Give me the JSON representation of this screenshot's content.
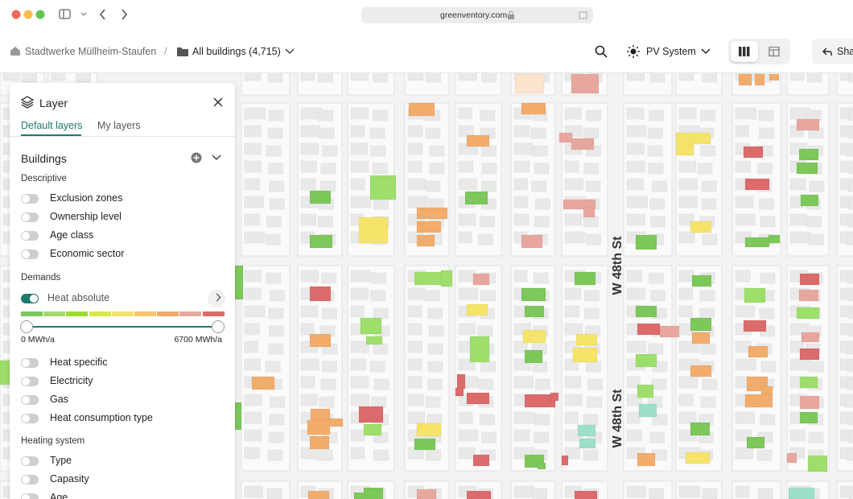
{
  "browser": {
    "url": "greenventory.com"
  },
  "toolbar": {
    "breadcrumb": [
      "Stadtwerke Müllheim-Staufen",
      "/",
      "All buildings (4,715)"
    ],
    "layer_select": "PV System",
    "share": "Sha"
  },
  "panel": {
    "title": "Layer",
    "tabs": [
      "Default layers",
      "My layers"
    ],
    "section": "Buildings",
    "groups": [
      {
        "title": "Descriptive",
        "items": [
          "Exclusion zones",
          "Ownership level",
          "Age class",
          "Economic sector"
        ]
      },
      {
        "title": "Demands",
        "active": "Heat absolute",
        "range": [
          "0 MWh/a",
          "6700 MWh/a"
        ],
        "items": [
          "Heat specific",
          "Electricity",
          "Gas",
          "Heat consumption type"
        ]
      },
      {
        "title": "Heating system",
        "items": [
          "Type",
          "Capasity",
          "Age"
        ]
      }
    ]
  },
  "map": {
    "street_labels": [
      "W 48th St",
      "W 48th St"
    ]
  }
}
